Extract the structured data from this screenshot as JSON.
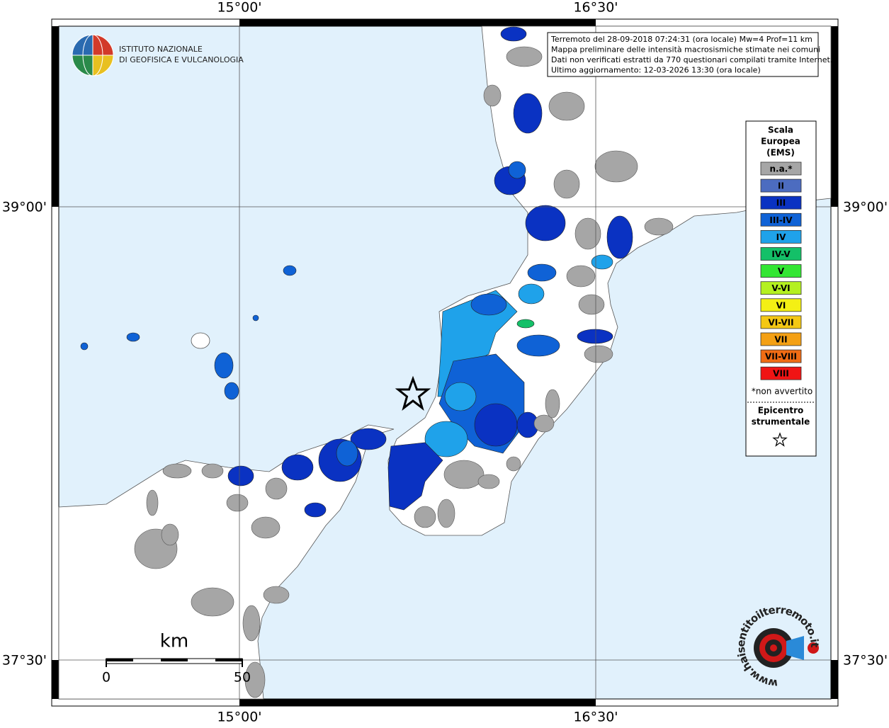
{
  "map": {
    "coordinate_labels": {
      "top": [
        "15°00'",
        "16°30'"
      ],
      "bottom": [
        "15°00'",
        "16°30'"
      ],
      "left": [
        "39°00'",
        "37°30'"
      ],
      "right": [
        "39°00'",
        "37°30'"
      ]
    },
    "logo": {
      "line1": "ISTITUTO NAZIONALE",
      "line2": "DI GEOFISICA E VULCANOLOGIA"
    },
    "info_box": [
      "Terremoto del 28-09-2018 07:24:31 (ora locale) Mw=4 Prof=11 km",
      "Mappa preliminare delle intensità macrosismiche stimate nei comuni",
      "Dati non verificati estratti da 770 questionari compilati tramite Internet.",
      "Ultimo aggiornamento: 12-03-2026 13:30 (ora locale)"
    ],
    "legend": {
      "title": [
        "Scala",
        "Europea",
        "(EMS)"
      ],
      "items": [
        {
          "label": "n.a.*",
          "color": "#a6a6a6"
        },
        {
          "label": "II",
          "color": "#4c6cc0"
        },
        {
          "label": "III",
          "color": "#0a32c2"
        },
        {
          "label": "III-IV",
          "color": "#0f62d6"
        },
        {
          "label": "IV",
          "color": "#1fa2ea"
        },
        {
          "label": "IV-V",
          "color": "#14c068"
        },
        {
          "label": "V",
          "color": "#33e633"
        },
        {
          "label": "V-VI",
          "color": "#b4f020"
        },
        {
          "label": "VI",
          "color": "#f4f014"
        },
        {
          "label": "VI-VII",
          "color": "#f4c814"
        },
        {
          "label": "VII",
          "color": "#f4a014"
        },
        {
          "label": "VII-VIII",
          "color": "#f06c14"
        },
        {
          "label": "VIII",
          "color": "#f01414"
        }
      ],
      "note": "*non avvertito",
      "epicenter_title": [
        "Epicentro",
        "strumentale"
      ]
    },
    "scale_bar": {
      "unit": "km",
      "labels": [
        "0",
        "50"
      ]
    },
    "watermark": "www.haisentitoilterremoto.it"
  }
}
